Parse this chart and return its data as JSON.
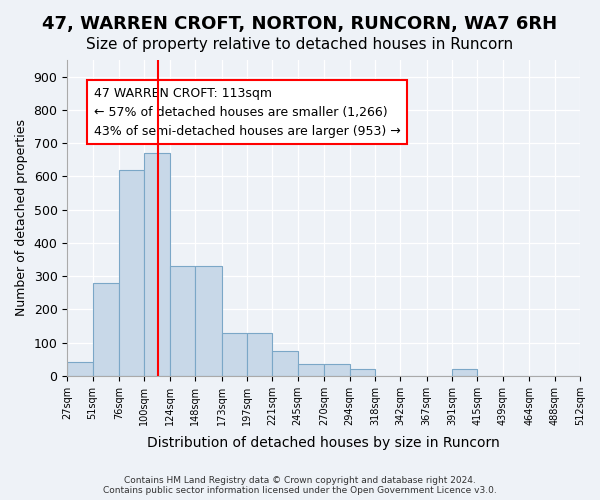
{
  "title": "47, WARREN CROFT, NORTON, RUNCORN, WA7 6RH",
  "subtitle": "Size of property relative to detached houses in Runcorn",
  "xlabel": "Distribution of detached houses by size in Runcorn",
  "ylabel": "Number of detached properties",
  "bar_edges": [
    27,
    51,
    76,
    100,
    124,
    148,
    173,
    197,
    221,
    245,
    270,
    294,
    318,
    342,
    367,
    391,
    415,
    439,
    464,
    488,
    512
  ],
  "bar_heights": [
    40,
    280,
    620,
    670,
    330,
    330,
    130,
    130,
    75,
    35,
    35,
    20,
    0,
    0,
    0,
    20,
    0,
    0,
    0,
    0
  ],
  "bar_color": "#c8d8e8",
  "bar_edgecolor": "#7ba7c7",
  "vline_x": 113,
  "vline_color": "red",
  "annotation_text": "47 WARREN CROFT: 113sqm\n← 57% of detached houses are smaller (1,266)\n43% of semi-detached houses are larger (953) →",
  "annotation_box_edgecolor": "red",
  "annotation_fontsize": 9,
  "yticks": [
    0,
    100,
    200,
    300,
    400,
    500,
    600,
    700,
    800,
    900
  ],
  "xtick_labels": [
    "27sqm",
    "51sqm",
    "76sqm",
    "100sqm",
    "124sqm",
    "148sqm",
    "173sqm",
    "197sqm",
    "221sqm",
    "245sqm",
    "270sqm",
    "294sqm",
    "318sqm",
    "342sqm",
    "367sqm",
    "391sqm",
    "415sqm",
    "439sqm",
    "464sqm",
    "488sqm",
    "512sqm"
  ],
  "footnote": "Contains HM Land Registry data © Crown copyright and database right 2024.\nContains public sector information licensed under the Open Government Licence v3.0.",
  "bg_color": "#eef2f7",
  "plot_bg_color": "#eef2f7",
  "ylim": [
    0,
    950
  ],
  "title_fontsize": 13,
  "subtitle_fontsize": 11
}
